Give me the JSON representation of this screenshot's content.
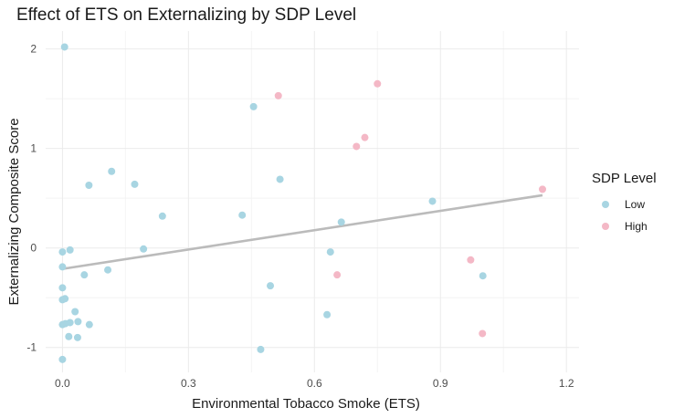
{
  "chart_data": {
    "type": "scatter",
    "title": "Effect of ETS on Externalizing by SDP Level",
    "xlabel": "Environmental Tobacco Smoke (ETS)",
    "ylabel": "Externalizing Composite Score",
    "xlim": [
      -0.04,
      1.23
    ],
    "ylim": [
      -1.25,
      2.18
    ],
    "x_ticks": [
      0.0,
      0.3,
      0.6,
      0.9,
      1.2
    ],
    "x_tick_labels": [
      "0.0",
      "0.3",
      "0.6",
      "0.9",
      "1.2"
    ],
    "y_ticks": [
      -1,
      0,
      1,
      2
    ],
    "y_tick_labels": [
      "-1",
      "0",
      "1",
      "2"
    ],
    "grid": true,
    "legend": {
      "title": "SDP Level",
      "placement": "right"
    },
    "series": [
      {
        "name": "Low",
        "color": "#a8d5e2",
        "points": [
          [
            0.005,
            2.02
          ],
          [
            0.0,
            -0.04
          ],
          [
            0.018,
            -0.02
          ],
          [
            0.0,
            -0.19
          ],
          [
            0.0,
            -0.4
          ],
          [
            0.0,
            -0.52
          ],
          [
            0.006,
            -0.51
          ],
          [
            0.0,
            -0.77
          ],
          [
            0.007,
            -0.76
          ],
          [
            0.018,
            -0.75
          ],
          [
            0.03,
            -0.64
          ],
          [
            0.037,
            -0.74
          ],
          [
            0.064,
            -0.77
          ],
          [
            0.0,
            -1.12
          ],
          [
            0.015,
            -0.89
          ],
          [
            0.036,
            -0.9
          ],
          [
            0.052,
            -0.27
          ],
          [
            0.108,
            -0.22
          ],
          [
            0.063,
            0.63
          ],
          [
            0.117,
            0.77
          ],
          [
            0.172,
            0.64
          ],
          [
            0.193,
            -0.01
          ],
          [
            0.238,
            0.32
          ],
          [
            0.428,
            0.33
          ],
          [
            0.455,
            1.42
          ],
          [
            0.472,
            -1.02
          ],
          [
            0.495,
            -0.38
          ],
          [
            0.518,
            0.69
          ],
          [
            0.63,
            -0.67
          ],
          [
            0.638,
            -0.04
          ],
          [
            0.664,
            0.26
          ],
          [
            0.881,
            0.47
          ],
          [
            1.001,
            -0.28
          ]
        ]
      },
      {
        "name": "High",
        "color": "#f4b8c6",
        "points": [
          [
            0.514,
            1.53
          ],
          [
            0.7,
            1.02
          ],
          [
            0.72,
            1.11
          ],
          [
            0.75,
            1.65
          ],
          [
            0.654,
            -0.27
          ],
          [
            0.972,
            -0.12
          ],
          [
            1.0,
            -0.86
          ],
          [
            1.143,
            0.59
          ]
        ]
      }
    ],
    "trend_line": {
      "color": "#bbbbbb",
      "x": [
        0.0,
        1.143
      ],
      "y": [
        -0.21,
        0.53
      ]
    }
  }
}
